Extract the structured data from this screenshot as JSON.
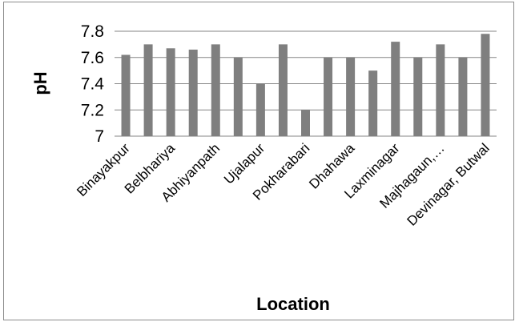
{
  "chart_data": {
    "type": "bar",
    "xlabel": "Location",
    "ylabel": "pH",
    "ylim": [
      7,
      7.8
    ],
    "yticks": [
      "7",
      "7.2",
      "7.4",
      "7.6",
      "7.8"
    ],
    "categories": [
      "Binayakpur",
      "",
      "Belbhariya",
      "",
      "Abhiyanpath",
      "",
      "Ujalapur",
      "",
      "Pokharabari",
      "",
      "Dhahawa",
      "",
      "Laxminagar",
      "",
      "Majhagaun,…",
      "",
      "Devinagar, Butwal"
    ],
    "values": [
      7.62,
      7.7,
      7.67,
      7.66,
      7.7,
      7.6,
      7.4,
      7.7,
      7.2,
      7.6,
      7.6,
      7.5,
      7.72,
      7.6,
      7.7,
      7.6,
      7.78
    ],
    "grid": true,
    "bar_color": "#7f7f7f",
    "grid_color": "#868686"
  }
}
